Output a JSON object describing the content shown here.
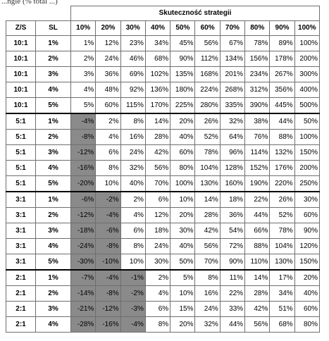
{
  "caption": "...ngle (% total ...)",
  "table": {
    "title": "Skuteczność strategii",
    "header_zs": "Z/S",
    "header_sl": "SL",
    "columns": [
      "10%",
      "20%",
      "30%",
      "40%",
      "50%",
      "60%",
      "70%",
      "80%",
      "90%",
      "100%"
    ],
    "rows": [
      {
        "zs": "10:1",
        "sl": "1%",
        "vals": [
          "1%",
          "12%",
          "23%",
          "34%",
          "45%",
          "56%",
          "67%",
          "78%",
          "89%",
          "100%"
        ]
      },
      {
        "zs": "10:1",
        "sl": "2%",
        "vals": [
          "2%",
          "24%",
          "46%",
          "68%",
          "90%",
          "112%",
          "134%",
          "156%",
          "178%",
          "200%"
        ]
      },
      {
        "zs": "10:1",
        "sl": "3%",
        "vals": [
          "3%",
          "36%",
          "69%",
          "102%",
          "135%",
          "168%",
          "201%",
          "234%",
          "267%",
          "300%"
        ]
      },
      {
        "zs": "10:1",
        "sl": "4%",
        "vals": [
          "4%",
          "48%",
          "92%",
          "136%",
          "180%",
          "224%",
          "268%",
          "312%",
          "356%",
          "400%"
        ]
      },
      {
        "zs": "10:1",
        "sl": "5%",
        "vals": [
          "5%",
          "60%",
          "115%",
          "170%",
          "225%",
          "280%",
          "335%",
          "390%",
          "445%",
          "500%"
        ]
      },
      {
        "zs": "5:1",
        "sl": "1%",
        "vals": [
          "-4%",
          "2%",
          "8%",
          "14%",
          "20%",
          "26%",
          "32%",
          "38%",
          "44%",
          "50%"
        ]
      },
      {
        "zs": "5:1",
        "sl": "2%",
        "vals": [
          "-8%",
          "4%",
          "16%",
          "28%",
          "40%",
          "52%",
          "64%",
          "76%",
          "88%",
          "100%"
        ]
      },
      {
        "zs": "5:1",
        "sl": "3%",
        "vals": [
          "-12%",
          "6%",
          "24%",
          "42%",
          "60%",
          "78%",
          "96%",
          "114%",
          "132%",
          "150%"
        ]
      },
      {
        "zs": "5:1",
        "sl": "4%",
        "vals": [
          "-16%",
          "8%",
          "32%",
          "56%",
          "80%",
          "104%",
          "128%",
          "152%",
          "176%",
          "200%"
        ]
      },
      {
        "zs": "5:1",
        "sl": "5%",
        "vals": [
          "-20%",
          "10%",
          "40%",
          "70%",
          "100%",
          "130%",
          "160%",
          "190%",
          "220%",
          "250%"
        ]
      },
      {
        "zs": "3:1",
        "sl": "1%",
        "vals": [
          "-6%",
          "-2%",
          "2%",
          "6%",
          "10%",
          "14%",
          "18%",
          "22%",
          "26%",
          "30%"
        ]
      },
      {
        "zs": "3:1",
        "sl": "2%",
        "vals": [
          "-12%",
          "-4%",
          "4%",
          "12%",
          "20%",
          "28%",
          "36%",
          "44%",
          "52%",
          "60%"
        ]
      },
      {
        "zs": "3:1",
        "sl": "3%",
        "vals": [
          "-18%",
          "-6%",
          "6%",
          "18%",
          "30%",
          "42%",
          "54%",
          "66%",
          "78%",
          "90%"
        ]
      },
      {
        "zs": "3:1",
        "sl": "4%",
        "vals": [
          "-24%",
          "-8%",
          "8%",
          "24%",
          "40%",
          "56%",
          "72%",
          "88%",
          "104%",
          "120%"
        ]
      },
      {
        "zs": "3:1",
        "sl": "5%",
        "vals": [
          "-30%",
          "-10%",
          "10%",
          "30%",
          "50%",
          "70%",
          "90%",
          "110%",
          "130%",
          "150%"
        ]
      },
      {
        "zs": "2:1",
        "sl": "1%",
        "vals": [
          "-7%",
          "-4%",
          "-1%",
          "2%",
          "5%",
          "8%",
          "11%",
          "14%",
          "17%",
          "20%"
        ]
      },
      {
        "zs": "2:1",
        "sl": "2%",
        "vals": [
          "-14%",
          "-8%",
          "-2%",
          "4%",
          "10%",
          "16%",
          "22%",
          "28%",
          "34%",
          "40%"
        ]
      },
      {
        "zs": "2:1",
        "sl": "3%",
        "vals": [
          "-21%",
          "-12%",
          "-3%",
          "6%",
          "15%",
          "24%",
          "33%",
          "42%",
          "51%",
          "60%"
        ]
      },
      {
        "zs": "2:1",
        "sl": "4%",
        "vals": [
          "-28%",
          "-16%",
          "-4%",
          "8%",
          "20%",
          "32%",
          "44%",
          "56%",
          "68%",
          "80%"
        ]
      }
    ]
  }
}
